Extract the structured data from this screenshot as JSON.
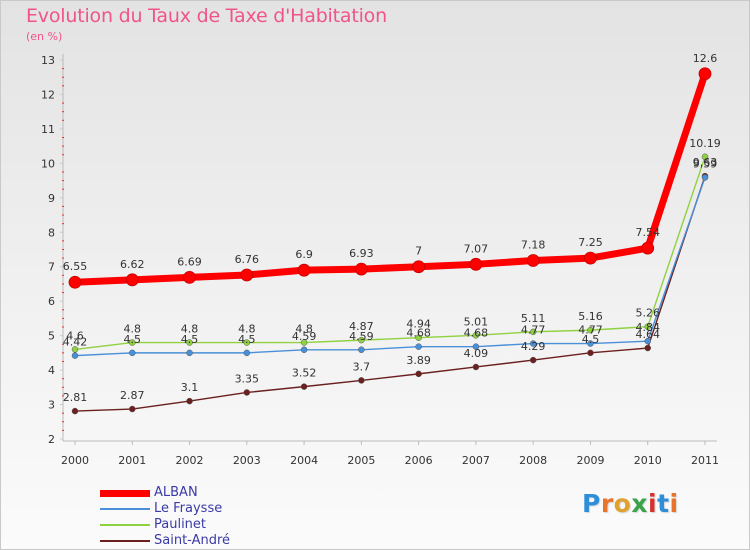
{
  "header": {
    "title": "Evolution du Taux de Taxe d'Habitation",
    "subtitle": "(en %)"
  },
  "logo": {
    "letters": [
      "P",
      "r",
      "o",
      "x",
      "i",
      "t",
      "i"
    ],
    "colors": [
      "#2e8fd8",
      "#e8732a",
      "#e0a12e",
      "#3aa34a",
      "#d7322e",
      "#2e8fd8",
      "#e8732a"
    ]
  },
  "chart_data": {
    "type": "line",
    "title": "Evolution du Taux de Taxe d'Habitation",
    "ylabel": "(en %)",
    "xlabel": "",
    "x": [
      "2000",
      "2001",
      "2002",
      "2003",
      "2004",
      "2005",
      "2006",
      "2007",
      "2008",
      "2009",
      "2010",
      "2011"
    ],
    "ylim": [
      2,
      13
    ],
    "yticks": [
      "2",
      "3",
      "4",
      "5",
      "6",
      "7",
      "8",
      "9",
      "10",
      "11",
      "12",
      "13"
    ],
    "legend_position": "bottom-left",
    "series": [
      {
        "name": "ALBAN",
        "color": "#ff0000",
        "values": [
          6.55,
          6.62,
          6.69,
          6.76,
          6.9,
          6.93,
          7.0,
          7.07,
          7.18,
          7.25,
          7.54,
          12.6
        ],
        "labels": [
          "6.55",
          "6.62",
          "6.69",
          "6.76",
          "6.9",
          "6.93",
          "7",
          "7.07",
          "7.18",
          "7.25",
          "7.54",
          "12.6"
        ]
      },
      {
        "name": "Le Fraysse",
        "color": "#4a90d9",
        "values": [
          4.42,
          4.5,
          4.5,
          4.5,
          4.59,
          4.59,
          4.68,
          4.68,
          4.77,
          4.77,
          4.84,
          9.59
        ],
        "labels": [
          "4.42",
          "4.5",
          "4.5",
          "4.5",
          "4.59",
          "4.59",
          "4.68",
          "4.68",
          "4.77",
          "4.77",
          "4.84",
          "9.59"
        ]
      },
      {
        "name": "Paulinet",
        "color": "#8fd13f",
        "values": [
          4.6,
          4.8,
          4.8,
          4.8,
          4.8,
          4.87,
          4.94,
          5.01,
          5.11,
          5.16,
          5.26,
          10.19
        ],
        "labels": [
          "4.6",
          "4.8",
          "4.8",
          "4.8",
          "4.8",
          "4.87",
          "4.94",
          "5.01",
          "5.11",
          "5.16",
          "5.26",
          "10.19"
        ]
      },
      {
        "name": "Saint-André",
        "color": "#6b1f1f",
        "values": [
          2.81,
          2.87,
          3.1,
          3.35,
          3.52,
          3.7,
          3.89,
          4.09,
          4.29,
          4.5,
          4.64,
          9.63
        ],
        "labels": [
          "2.81",
          "2.87",
          "3.1",
          "3.35",
          "3.52",
          "3.7",
          "3.89",
          "4.09",
          "4.29",
          "4.5",
          "4.64",
          "9.63"
        ]
      }
    ]
  }
}
